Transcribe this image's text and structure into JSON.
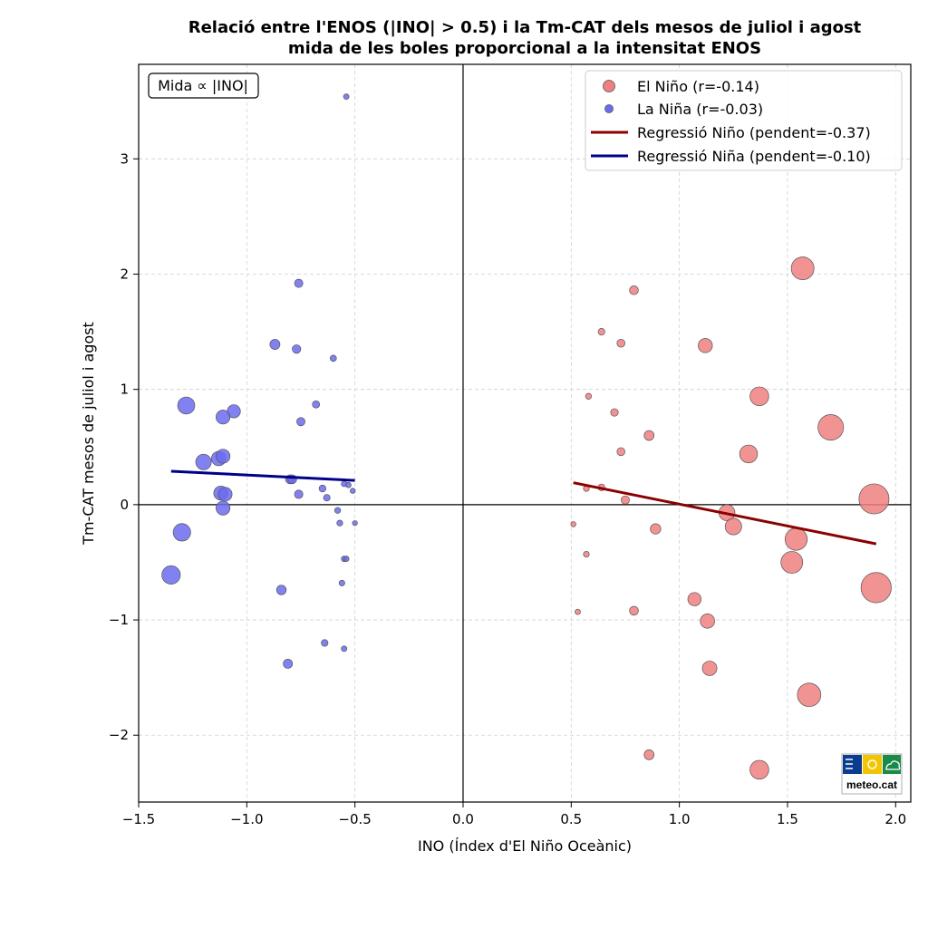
{
  "chart_data": {
    "type": "scatter",
    "title": "Relació entre l'ENOS (|INO| > 0.5) i la Tm-CAT dels mesos de juliol i agost",
    "subtitle": "mida de les boles proporcional a la intensitat ENOS",
    "xlabel": "INO (Índex d'El Niño Oceànic)",
    "ylabel": "Tm-CAT mesos de juliol i agost",
    "xlim": [
      -1.5,
      2.07
    ],
    "ylim": [
      -2.58,
      3.82
    ],
    "xticks": [
      -1.5,
      -1.0,
      -0.5,
      0.0,
      0.5,
      1.0,
      1.5,
      2.0
    ],
    "xtick_labels": [
      "−1.5",
      "−1.0",
      "−0.5",
      "0.0",
      "0.5",
      "1.0",
      "1.5",
      "2.0"
    ],
    "yticks": [
      -2,
      -1,
      0,
      1,
      2,
      3
    ],
    "ytick_labels": [
      "−2",
      "−1",
      "0",
      "1",
      "2",
      "3"
    ],
    "grid": true,
    "legend_position": "top-right",
    "size_note": "Mida ∝ |INO|",
    "series": [
      {
        "name": "El Niño (r=-0.14)",
        "color": "#f08080",
        "points": [
          [
            1.57,
            2.05
          ],
          [
            0.79,
            1.86
          ],
          [
            0.64,
            1.5
          ],
          [
            0.73,
            1.4
          ],
          [
            1.12,
            1.38
          ],
          [
            0.58,
            0.94
          ],
          [
            1.37,
            0.94
          ],
          [
            0.7,
            0.8
          ],
          [
            1.7,
            0.67
          ],
          [
            0.86,
            0.6
          ],
          [
            0.73,
            0.46
          ],
          [
            1.32,
            0.44
          ],
          [
            0.57,
            0.14
          ],
          [
            0.64,
            0.15
          ],
          [
            0.75,
            0.04
          ],
          [
            1.9,
            0.05
          ],
          [
            1.22,
            -0.07
          ],
          [
            1.25,
            -0.19
          ],
          [
            0.51,
            -0.17
          ],
          [
            0.89,
            -0.21
          ],
          [
            1.54,
            -0.3
          ],
          [
            0.57,
            -0.43
          ],
          [
            1.52,
            -0.5
          ],
          [
            1.91,
            -0.72
          ],
          [
            1.07,
            -0.82
          ],
          [
            0.53,
            -0.93
          ],
          [
            0.79,
            -0.92
          ],
          [
            1.13,
            -1.01
          ],
          [
            1.14,
            -1.42
          ],
          [
            1.6,
            -1.65
          ],
          [
            0.86,
            -2.17
          ],
          [
            1.37,
            -2.3
          ]
        ]
      },
      {
        "name": "La Niña (r=-0.03)",
        "color": "#6b6bf0",
        "points": [
          [
            -0.54,
            3.54
          ],
          [
            -0.76,
            1.92
          ],
          [
            -0.87,
            1.39
          ],
          [
            -0.77,
            1.35
          ],
          [
            -0.6,
            1.27
          ],
          [
            -1.28,
            0.86
          ],
          [
            -0.68,
            0.87
          ],
          [
            -1.06,
            0.81
          ],
          [
            -1.11,
            0.76
          ],
          [
            -0.75,
            0.72
          ],
          [
            -1.2,
            0.37
          ],
          [
            -1.13,
            0.4
          ],
          [
            -1.11,
            0.42
          ],
          [
            -0.8,
            0.22
          ],
          [
            -0.79,
            0.22
          ],
          [
            -0.55,
            0.18
          ],
          [
            -0.53,
            0.17
          ],
          [
            -0.65,
            0.14
          ],
          [
            -1.12,
            0.1
          ],
          [
            -1.1,
            0.09
          ],
          [
            -0.76,
            0.09
          ],
          [
            -0.51,
            0.12
          ],
          [
            -0.63,
            0.06
          ],
          [
            -1.11,
            -0.03
          ],
          [
            -0.58,
            -0.05
          ],
          [
            -0.57,
            -0.16
          ],
          [
            -0.5,
            -0.16
          ],
          [
            -1.3,
            -0.24
          ],
          [
            -0.55,
            -0.47
          ],
          [
            -0.54,
            -0.47
          ],
          [
            -1.35,
            -0.61
          ],
          [
            -0.56,
            -0.68
          ],
          [
            -0.84,
            -0.74
          ],
          [
            -0.64,
            -1.2
          ],
          [
            -0.55,
            -1.25
          ],
          [
            -0.81,
            -1.38
          ]
        ]
      }
    ],
    "regressions": [
      {
        "name": "Regressió Niño (pendent=-0.37)",
        "color": "#8b0000",
        "x": [
          0.51,
          1.91
        ],
        "y": [
          0.19,
          -0.34
        ]
      },
      {
        "name": "Regressió Niña (pendent=-0.10)",
        "color": "#00008b",
        "x": [
          -1.35,
          -0.5
        ],
        "y": [
          0.29,
          0.21
        ]
      }
    ]
  },
  "logo": {
    "text": "meteo.cat",
    "colors": [
      "#0a3d8f",
      "#f2c500",
      "#1a8a4a"
    ]
  }
}
